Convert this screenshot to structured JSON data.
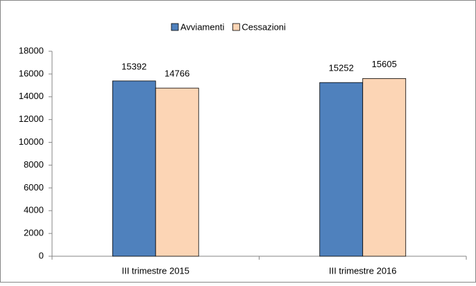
{
  "chart_data": {
    "type": "bar",
    "categories": [
      "III trimestre 2015",
      "III trimestre 2016"
    ],
    "series": [
      {
        "name": "Avviamenti",
        "color": "#4f81bd",
        "values": [
          15392,
          15252
        ]
      },
      {
        "name": "Cessazioni",
        "color": "#fcd5b5",
        "values": [
          14766,
          15605
        ]
      }
    ],
    "ylim": [
      0,
      18000
    ],
    "yticks": [
      0,
      2000,
      4000,
      6000,
      8000,
      10000,
      12000,
      14000,
      16000,
      18000
    ],
    "legend": "top",
    "grid": false
  }
}
